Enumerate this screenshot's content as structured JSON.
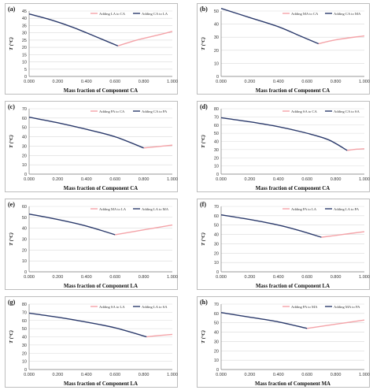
{
  "colors": {
    "series_pink": "#f4a3a8",
    "series_navy": "#2b3a6b",
    "grid": "#d9d9d9",
    "axis": "#7f7f7f"
  },
  "chart_data": [
    {
      "panel_label": "(a)",
      "type": "line",
      "xlabel": "Mass fraction of Component CA",
      "ylabel": "T (°C)",
      "xlim": [
        0,
        1
      ],
      "ylim": [
        0,
        45
      ],
      "xticks": [
        "0.000",
        "0.200",
        "0.400",
        "0.600",
        "0.800",
        "1.000"
      ],
      "yticks": [
        "0",
        "5",
        "10",
        "15",
        "20",
        "25",
        "30",
        "35",
        "40",
        "45"
      ],
      "series": [
        {
          "name": "Adding LA to CA",
          "color": "#f4a3a8",
          "x": [
            0.62,
            0.75,
            0.9,
            1.0
          ],
          "y": [
            21,
            25,
            28.5,
            31
          ]
        },
        {
          "name": "Adding CA to LA",
          "color": "#2b3a6b",
          "x": [
            0.0,
            0.15,
            0.3,
            0.45,
            0.62
          ],
          "y": [
            43,
            39,
            34,
            28,
            21
          ]
        }
      ]
    },
    {
      "panel_label": "(b)",
      "type": "line",
      "xlabel": "Mass fraction of Component CA",
      "ylabel": "T (°C)",
      "xlim": [
        0,
        1
      ],
      "ylim": [
        0,
        50
      ],
      "xticks": [
        "0.000",
        "0.200",
        "0.400",
        "0.600",
        "0.800",
        "1.000"
      ],
      "yticks": [
        "0",
        "10",
        "20",
        "30",
        "40",
        "50"
      ],
      "series": [
        {
          "name": "Adding MA to CA",
          "color": "#f4a3a8",
          "x": [
            0.68,
            0.8,
            1.0
          ],
          "y": [
            25,
            28,
            31
          ]
        },
        {
          "name": "Adding CA to MA",
          "color": "#2b3a6b",
          "x": [
            0.0,
            0.2,
            0.4,
            0.55,
            0.68
          ],
          "y": [
            52,
            45,
            38,
            31,
            25
          ]
        }
      ]
    },
    {
      "panel_label": "(c)",
      "type": "line",
      "xlabel": "Mass fraction of Component CA",
      "ylabel": "T (°C)",
      "xlim": [
        0,
        1
      ],
      "ylim": [
        0,
        70
      ],
      "xticks": [
        "0.000",
        "0.200",
        "0.400",
        "0.600",
        "0.800",
        "1.000"
      ],
      "yticks": [
        "0",
        "10",
        "20",
        "30",
        "40",
        "50",
        "60",
        "70"
      ],
      "series": [
        {
          "name": "Adding PA to CA",
          "color": "#f4a3a8",
          "x": [
            0.8,
            0.9,
            1.0
          ],
          "y": [
            28,
            29.5,
            31
          ]
        },
        {
          "name": "Adding CA to PA",
          "color": "#2b3a6b",
          "x": [
            0.0,
            0.2,
            0.4,
            0.6,
            0.8
          ],
          "y": [
            61,
            55,
            48,
            40,
            28
          ]
        }
      ]
    },
    {
      "panel_label": "(d)",
      "type": "line",
      "xlabel": "Mass fraction of Component CA",
      "ylabel": "T (°C)",
      "xlim": [
        0,
        1
      ],
      "ylim": [
        0,
        80
      ],
      "xticks": [
        "0.000",
        "0.200",
        "0.400",
        "0.600",
        "0.800",
        "1.000"
      ],
      "yticks": [
        "0",
        "10",
        "20",
        "30",
        "40",
        "50",
        "60",
        "70",
        "80"
      ],
      "series": [
        {
          "name": "Adding SA to CA",
          "color": "#f4a3a8",
          "x": [
            0.88,
            0.95,
            1.0
          ],
          "y": [
            29,
            30.5,
            31
          ]
        },
        {
          "name": "Adding CA to SA",
          "color": "#2b3a6b",
          "x": [
            0.0,
            0.2,
            0.4,
            0.6,
            0.75,
            0.88
          ],
          "y": [
            69,
            64,
            58,
            50,
            42,
            29
          ]
        }
      ]
    },
    {
      "panel_label": "(e)",
      "type": "line",
      "xlabel": "Mass fraction of Component LA",
      "ylabel": "T (°C)",
      "xlim": [
        0,
        1
      ],
      "ylim": [
        0,
        60
      ],
      "xticks": [
        "0.000",
        "0.200",
        "0.400",
        "0.600",
        "0.800",
        "1.000"
      ],
      "yticks": [
        "0",
        "10",
        "20",
        "30",
        "40",
        "50",
        "60"
      ],
      "series": [
        {
          "name": "Adding MA to LA",
          "color": "#f4a3a8",
          "x": [
            0.6,
            0.8,
            1.0
          ],
          "y": [
            34,
            38.5,
            43
          ]
        },
        {
          "name": "Adding LA to MA",
          "color": "#2b3a6b",
          "x": [
            0.0,
            0.2,
            0.4,
            0.6
          ],
          "y": [
            53,
            48,
            42,
            34
          ]
        }
      ]
    },
    {
      "panel_label": "(f)",
      "type": "line",
      "xlabel": "Mass fraction of Component LA",
      "ylabel": "T (°C)",
      "xlim": [
        0,
        1
      ],
      "ylim": [
        0,
        70
      ],
      "xticks": [
        "0.000",
        "0.200",
        "0.400",
        "0.600",
        "0.800",
        "1.000"
      ],
      "yticks": [
        "0",
        "10",
        "20",
        "30",
        "40",
        "50",
        "60",
        "70"
      ],
      "series": [
        {
          "name": "Adding PA to LA",
          "color": "#f4a3a8",
          "x": [
            0.7,
            0.85,
            1.0
          ],
          "y": [
            37,
            40,
            43
          ]
        },
        {
          "name": "Adding LA to PA",
          "color": "#2b3a6b",
          "x": [
            0.0,
            0.2,
            0.4,
            0.55,
            0.7
          ],
          "y": [
            61,
            56,
            50,
            44,
            37
          ]
        }
      ]
    },
    {
      "panel_label": "(g)",
      "type": "line",
      "xlabel": "Mass fraction of Component LA",
      "ylabel": "T (°C)",
      "xlim": [
        0,
        1
      ],
      "ylim": [
        0,
        80
      ],
      "xticks": [
        "0.000",
        "0.200",
        "0.400",
        "0.600",
        "0.800",
        "1.000"
      ],
      "yticks": [
        "0",
        "10",
        "20",
        "30",
        "40",
        "50",
        "60",
        "70",
        "80"
      ],
      "series": [
        {
          "name": "Adding SA to LA",
          "color": "#f4a3a8",
          "x": [
            0.82,
            0.9,
            1.0
          ],
          "y": [
            40,
            41.5,
            43
          ]
        },
        {
          "name": "Adding LA to SA",
          "color": "#2b3a6b",
          "x": [
            0.0,
            0.2,
            0.4,
            0.6,
            0.82
          ],
          "y": [
            69,
            64,
            58,
            51,
            40
          ]
        }
      ]
    },
    {
      "panel_label": "(h)",
      "type": "line",
      "xlabel": "Mass fraction of Component MA",
      "ylabel": "T (°C)",
      "xlim": [
        0,
        1
      ],
      "ylim": [
        0,
        70
      ],
      "xticks": [
        "0.000",
        "0.200",
        "0.400",
        "0.600",
        "0.800",
        "1.000"
      ],
      "yticks": [
        "0",
        "10",
        "20",
        "30",
        "40",
        "50",
        "60",
        "70"
      ],
      "series": [
        {
          "name": "Adding PA to MA",
          "color": "#f4a3a8",
          "x": [
            0.6,
            0.8,
            1.0
          ],
          "y": [
            44,
            48.5,
            53
          ]
        },
        {
          "name": "Adding MA to PA",
          "color": "#2b3a6b",
          "x": [
            0.0,
            0.2,
            0.4,
            0.6
          ],
          "y": [
            61,
            56,
            51,
            44
          ]
        }
      ]
    }
  ]
}
